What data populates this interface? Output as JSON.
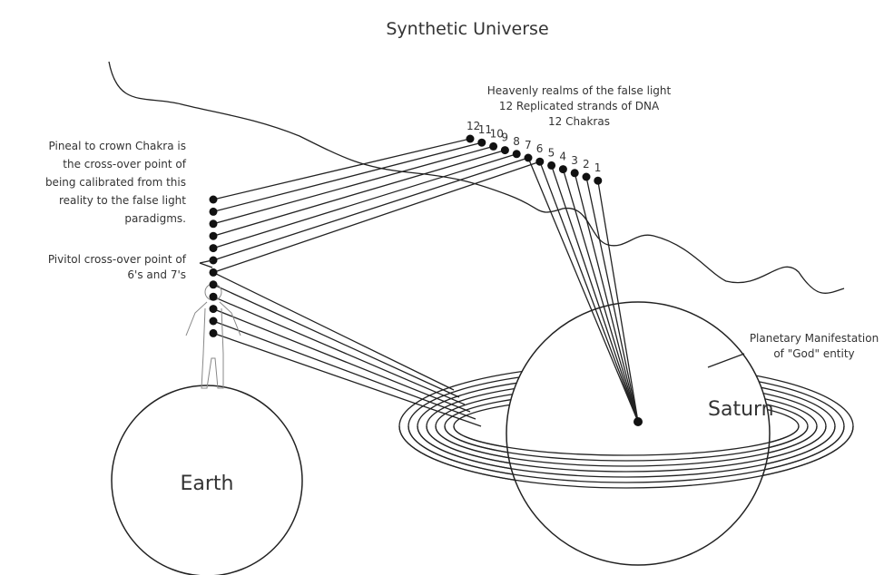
{
  "title": "Synthetic Universe",
  "top_note": [
    "Heavenly realms of the false light",
    "12 Replicated strands of DNA",
    "12 Chakras"
  ],
  "left_note": [
    "Pineal to crown Chakra is",
    "the cross-over point of",
    "being calibrated from this",
    "reality to the false light",
    "paradigms."
  ],
  "pivot_note": [
    "Pivitol cross-over point of",
    "6's and 7's"
  ],
  "planet_note": [
    "Planetary Manifestation",
    "of \"God\" entity"
  ],
  "saturn": "Saturn",
  "earth": "Earth",
  "chakra_numbers": [
    "12",
    "11",
    "10",
    "9",
    "8",
    "7",
    "6",
    "5",
    "4",
    "3",
    "2",
    "1"
  ]
}
